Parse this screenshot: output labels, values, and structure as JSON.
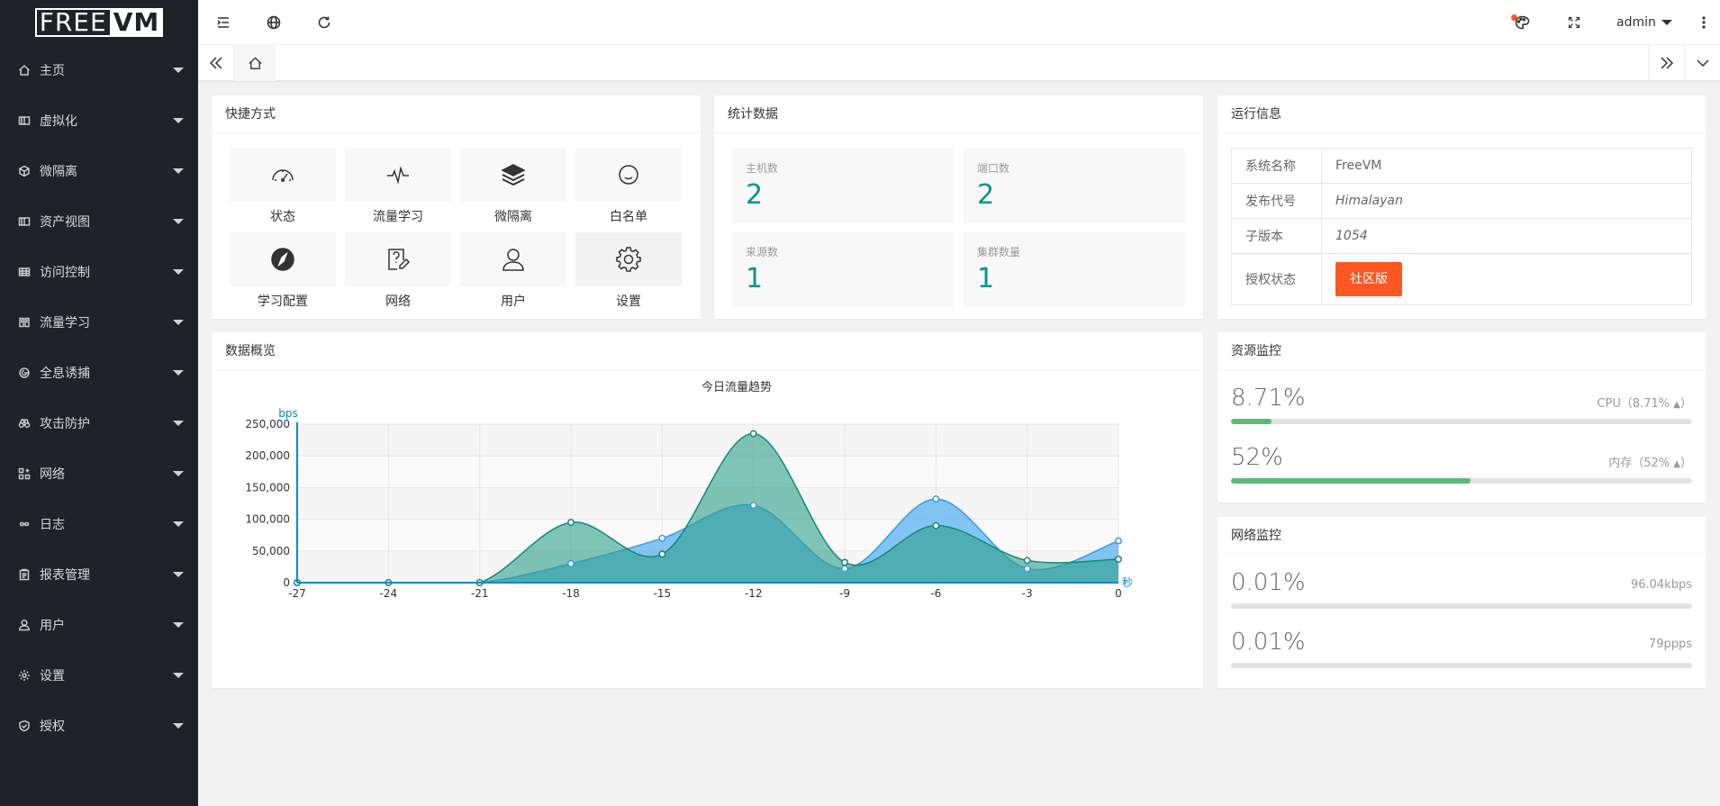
{
  "logo": {
    "part1": "FREE",
    "part2": "VM"
  },
  "sidebar": {
    "items": [
      {
        "label": "主页",
        "icon": "home-icon"
      },
      {
        "label": "虚拟化",
        "icon": "server-icon"
      },
      {
        "label": "微隔离",
        "icon": "cube-icon"
      },
      {
        "label": "资产视图",
        "icon": "server-icon"
      },
      {
        "label": "访问控制",
        "icon": "table-icon"
      },
      {
        "label": "流量学习",
        "icon": "book-icon"
      },
      {
        "label": "全息诱捕",
        "icon": "target-icon"
      },
      {
        "label": "攻击防护",
        "icon": "binoculars-icon"
      },
      {
        "label": "网络",
        "icon": "grid-plus-icon"
      },
      {
        "label": "日志",
        "icon": "infinity-icon"
      },
      {
        "label": "报表管理",
        "icon": "clipboard-icon"
      },
      {
        "label": "用户",
        "icon": "user-icon"
      },
      {
        "label": "设置",
        "icon": "gear-icon"
      },
      {
        "label": "授权",
        "icon": "shield-check-icon"
      }
    ]
  },
  "header": {
    "user": "admin"
  },
  "shortcuts": {
    "title": "快捷方式",
    "items": [
      {
        "label": "状态",
        "icon": "dashboard-icon"
      },
      {
        "label": "流量学习",
        "icon": "pulse-icon"
      },
      {
        "label": "微隔离",
        "icon": "layers-icon"
      },
      {
        "label": "白名单",
        "icon": "smile-icon"
      },
      {
        "label": "学习配置",
        "icon": "compass-icon"
      },
      {
        "label": "网络",
        "icon": "help-edit-icon"
      },
      {
        "label": "用户",
        "icon": "user-icon"
      },
      {
        "label": "设置",
        "icon": "gear-icon"
      }
    ]
  },
  "stats": {
    "title": "统计数据",
    "items": [
      {
        "label": "主机数",
        "value": "2"
      },
      {
        "label": "端口数",
        "value": "2"
      },
      {
        "label": "来源数",
        "value": "1"
      },
      {
        "label": "集群数量",
        "value": "1"
      }
    ]
  },
  "runinfo": {
    "title": "运行信息",
    "rows": [
      {
        "key": "系统名称",
        "value": "FreeVM"
      },
      {
        "key": "发布代号",
        "value": "Himalayan"
      },
      {
        "key": "子版本",
        "value": "1054"
      },
      {
        "key": "授权状态",
        "value": "社区版"
      }
    ]
  },
  "overview": {
    "title": "数据概览"
  },
  "resource": {
    "title": "资源监控",
    "cpu": {
      "big": "8.71%",
      "label": "CPU（8.71%",
      "fraction": 0.0871
    },
    "mem": {
      "big": "52%",
      "label": "内存（52%",
      "fraction": 0.52
    }
  },
  "network": {
    "title": "网络监控",
    "rows": [
      {
        "big": "0.01%",
        "small": "96.04kbps"
      },
      {
        "big": "0.01%",
        "small": "79ppps"
      }
    ]
  },
  "chart_data": {
    "type": "area",
    "title": "今日流量趋势",
    "ylabel": "bps",
    "xlabel": "秒",
    "x": [
      -27,
      -24,
      -21,
      -18,
      -15,
      -12,
      -9,
      -6,
      -3,
      0
    ],
    "ylim": [
      0,
      250000
    ],
    "yticks": [
      0,
      50000,
      100000,
      150000,
      200000,
      250000
    ],
    "ytick_labels": [
      "0",
      "50,000",
      "100,000",
      "150,000",
      "200,000",
      "250,000"
    ],
    "series": [
      {
        "color": "#5ab1ef",
        "values": [
          0,
          0,
          0,
          30000,
          70000,
          122000,
          22000,
          132000,
          22000,
          66000
        ]
      },
      {
        "color": "#2ec7c9",
        "values": [
          0,
          0,
          0,
          95000,
          45000,
          235000,
          32000,
          90000,
          35000,
          37000
        ]
      }
    ]
  }
}
